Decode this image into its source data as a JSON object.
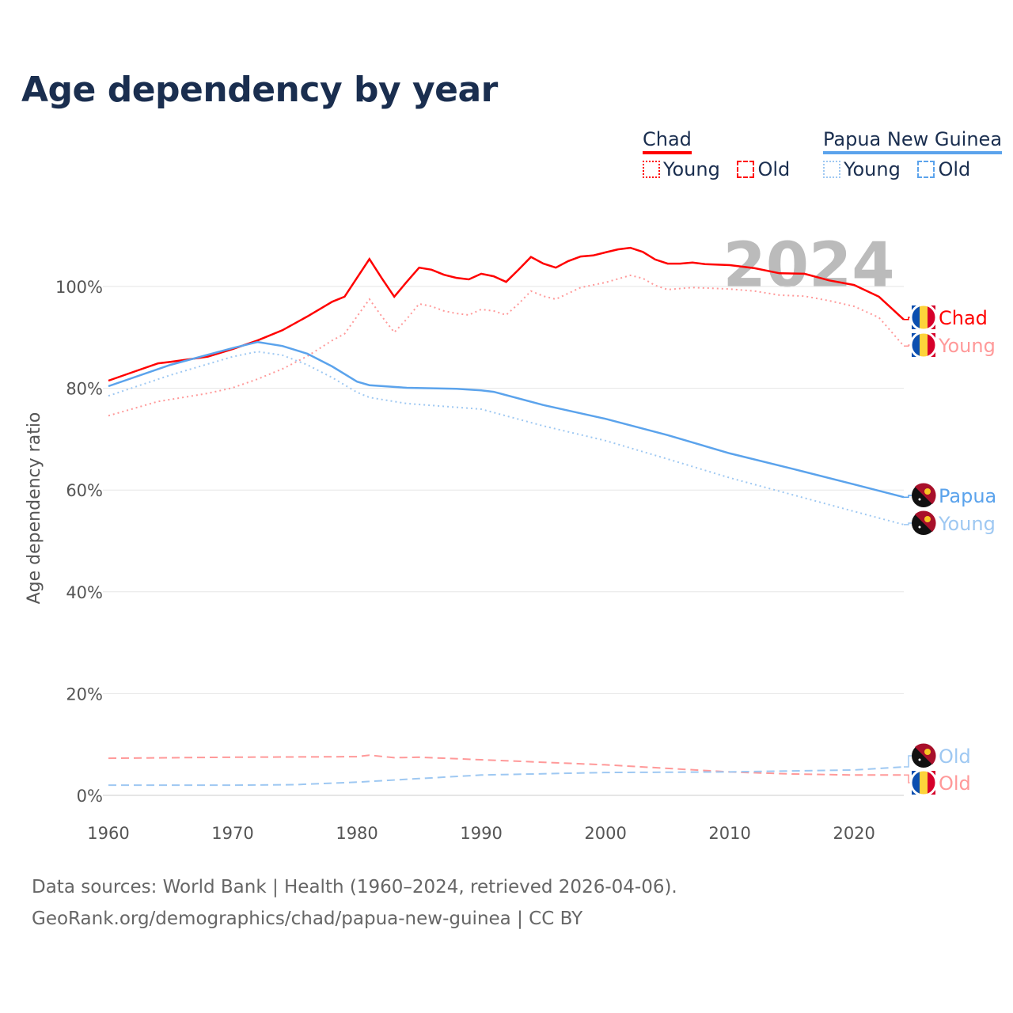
{
  "title": "Age dependency by year",
  "legend": {
    "groups": [
      {
        "name": "Chad",
        "items": [
          "Young",
          "Old"
        ],
        "color": "#ff0000",
        "light": "#ff9999"
      },
      {
        "name": "Papua New Guinea",
        "items": [
          "Young",
          "Old"
        ],
        "color": "#5ba3ec",
        "light": "#9ec8f2"
      }
    ]
  },
  "year_watermark": "2024",
  "footer": {
    "line1": "Data sources: World Bank | Health (1960–2024, retrieved 2026-04-06).",
    "line2": "GeoRank.org/demographics/chad/papua-new-guinea | CC BY"
  },
  "end_labels": [
    "Chad",
    "Young",
    "Papua",
    "Young",
    "Old",
    "Old"
  ],
  "chart_data": {
    "type": "line",
    "title": "Age dependency by year",
    "xlabel": "",
    "ylabel": "Age dependency ratio",
    "xlim": [
      1960,
      2024
    ],
    "ylim": [
      0,
      110
    ],
    "x_ticks": [
      "1960",
      "1970",
      "1980",
      "1990",
      "2000",
      "2010",
      "2020"
    ],
    "y_ticks": [
      "0%",
      "20%",
      "40%",
      "60%",
      "80%",
      "100%"
    ],
    "grid": true,
    "series": [
      {
        "name": "Chad",
        "style": "solid",
        "color": "#ff0000",
        "x": [
          1960,
          1962,
          1964,
          1965,
          1968,
          1970,
          1972,
          1974,
          1976,
          1978,
          1979,
          1980,
          1981,
          1982,
          1983,
          1984,
          1985,
          1986,
          1987,
          1988,
          1989,
          1990,
          1991,
          1992,
          1993,
          1994,
          1995,
          1996,
          1997,
          1998,
          1999,
          2000,
          2001,
          2002,
          2003,
          2004,
          2005,
          2006,
          2007,
          2008,
          2010,
          2012,
          2014,
          2016,
          2018,
          2020,
          2022,
          2024
        ],
        "y": [
          81.5,
          83.2,
          84.9,
          85.2,
          86.2,
          87.7,
          89.4,
          91.4,
          94.1,
          97.0,
          98.0,
          101.7,
          105.4,
          101.6,
          98.0,
          100.9,
          103.7,
          103.3,
          102.3,
          101.7,
          101.4,
          102.5,
          102.0,
          100.9,
          103.3,
          105.8,
          104.5,
          103.7,
          105.0,
          105.9,
          106.1,
          106.7,
          107.3,
          107.6,
          106.8,
          105.3,
          104.5,
          104.5,
          104.7,
          104.4,
          104.2,
          103.6,
          102.6,
          102.5,
          101.2,
          100.3,
          98.0,
          93.5
        ]
      },
      {
        "name": "Chad Young",
        "style": "dotted",
        "color": "#ff9999",
        "x": [
          1960,
          1962,
          1964,
          1966,
          1968,
          1970,
          1972,
          1974,
          1976,
          1978,
          1979,
          1980,
          1981,
          1982,
          1983,
          1984,
          1985,
          1986,
          1987,
          1988,
          1989,
          1990,
          1991,
          1992,
          1993,
          1994,
          1995,
          1996,
          1998,
          2000,
          2002,
          2003,
          2004,
          2005,
          2007,
          2010,
          2012,
          2014,
          2016,
          2018,
          2020,
          2022,
          2024
        ],
        "y": [
          74.6,
          76.0,
          77.4,
          78.2,
          79.0,
          80.1,
          81.8,
          83.8,
          86.3,
          89.4,
          90.7,
          94.1,
          97.5,
          94.1,
          91.0,
          93.6,
          96.6,
          96.1,
          95.2,
          94.7,
          94.4,
          95.5,
          95.2,
          94.4,
          96.6,
          99.1,
          98.1,
          97.5,
          99.8,
          100.8,
          102.2,
          101.6,
          100.2,
          99.4,
          99.8,
          99.5,
          99.1,
          98.3,
          98.1,
          97.2,
          96.1,
          93.9,
          88.3
        ]
      },
      {
        "name": "Chad Old",
        "style": "dashed",
        "color": "#ff9999",
        "x": [
          1960,
          1970,
          1980,
          1981,
          1983,
          1985,
          1990,
          2000,
          2010,
          2015,
          2020,
          2024
        ],
        "y": [
          7.3,
          7.5,
          7.6,
          7.9,
          7.4,
          7.5,
          7.0,
          6.0,
          4.6,
          4.2,
          4.0,
          4.0
        ]
      },
      {
        "name": "Papua New Guinea",
        "style": "solid",
        "color": "#5ba3ec",
        "x": [
          1960,
          1965,
          1970,
          1972,
          1974,
          1976,
          1978,
          1980,
          1981,
          1984,
          1988,
          1990,
          1991,
          1995,
          2000,
          2005,
          2010,
          2015,
          2020,
          2024
        ],
        "y": [
          80.4,
          84.6,
          87.9,
          89.1,
          88.3,
          86.8,
          84.3,
          81.3,
          80.6,
          80.1,
          79.9,
          79.6,
          79.3,
          76.7,
          74.0,
          70.8,
          67.2,
          64.2,
          61.1,
          58.6
        ]
      },
      {
        "name": "Papua New Guinea Young",
        "style": "dotted",
        "color": "#9ec8f2",
        "x": [
          1960,
          1965,
          1970,
          1972,
          1974,
          1976,
          1978,
          1980,
          1981,
          1984,
          1990,
          1995,
          2000,
          2005,
          2010,
          2015,
          2020,
          2024
        ],
        "y": [
          78.5,
          82.6,
          86.2,
          87.2,
          86.5,
          84.6,
          82.1,
          79.2,
          78.2,
          77.0,
          75.9,
          72.6,
          69.7,
          66.1,
          62.4,
          59.1,
          55.8,
          53.2
        ]
      },
      {
        "name": "Papua New Guinea Old",
        "style": "dashed",
        "color": "#9ec8f2",
        "x": [
          1960,
          1970,
          1975,
          1980,
          1985,
          1990,
          2000,
          2010,
          2020,
          2024
        ],
        "y": [
          2.0,
          2.0,
          2.1,
          2.6,
          3.3,
          4.0,
          4.5,
          4.6,
          5.0,
          5.6
        ]
      }
    ]
  }
}
